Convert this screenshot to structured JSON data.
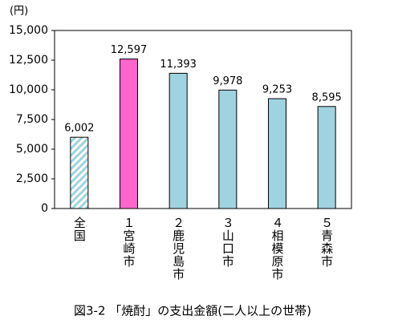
{
  "chart_data": {
    "type": "bar",
    "title": "図3-2 「焼酎」の支出金額(二人以上の世帯)",
    "y_unit": "(円)",
    "categories": [
      "全国",
      "１宮崎市",
      "２鹿児島市",
      "３山口市",
      "４相模原市",
      "５青森市"
    ],
    "values": [
      6002,
      12597,
      11393,
      9978,
      9253,
      8595
    ],
    "value_labels": [
      "6,002",
      "12,597",
      "11,393",
      "9,978",
      "9,253",
      "8,595"
    ],
    "colors": [
      "#9fd3df",
      "#ff66cc",
      "#9fd3df",
      "#9fd3df",
      "#9fd3df",
      "#9fd3df"
    ],
    "hatched": [
      true,
      false,
      false,
      false,
      false,
      false
    ],
    "ylim": [
      0,
      15000
    ],
    "yticks": [
      0,
      {
        "value": 2500,
        "label": "2,500"
      },
      {
        "value": 5000,
        "label": "5,000"
      },
      {
        "value": 7500,
        "label": "7,500"
      },
      {
        "value": 10000,
        "label": "10,000"
      },
      {
        "value": 12500,
        "label": "12,500"
      },
      {
        "value": 15000,
        "label": "15,000"
      }
    ],
    "grid": false
  }
}
